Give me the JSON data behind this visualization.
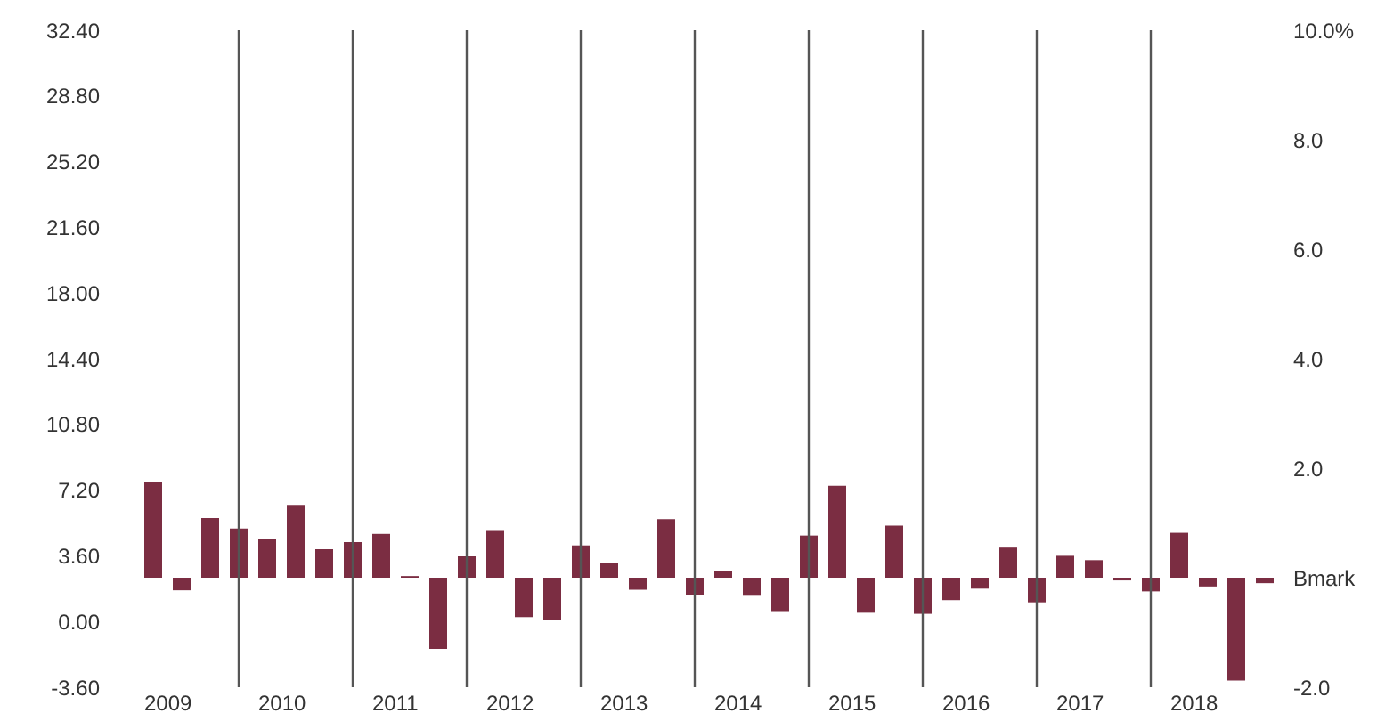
{
  "chart_data": {
    "type": "bar",
    "categories": [
      "2009",
      null,
      null,
      null,
      "2010",
      null,
      null,
      null,
      "2011",
      null,
      null,
      null,
      "2012",
      null,
      null,
      null,
      "2013",
      null,
      null,
      null,
      "2014",
      null,
      null,
      null,
      "2015",
      null,
      null,
      null,
      "2016",
      null,
      null,
      null,
      "2017",
      null,
      null,
      null,
      "2018",
      null,
      null,
      null
    ],
    "series": [
      {
        "color": "#7b2d42",
        "axis": "y2",
        "values": [
          1.74,
          -0.23,
          1.09,
          0.9,
          0.71,
          1.33,
          0.52,
          0.65,
          0.8,
          0.03,
          -1.3,
          0.39,
          0.87,
          -0.72,
          -0.77,
          0.59,
          0.26,
          -0.22,
          1.07,
          -0.31,
          0.12,
          -0.33,
          -0.61,
          0.77,
          1.68,
          -0.64,
          0.95,
          -0.66,
          -0.41,
          -0.2,
          0.55,
          -0.45,
          0.4,
          0.32,
          -0.05,
          -0.25,
          0.82,
          -0.16,
          -1.88,
          -0.1
        ]
      }
    ],
    "ylim": [
      -3.6,
      32.4
    ],
    "yticks": [
      {
        "value": -3.6,
        "label": "-3.60"
      },
      {
        "value": 0,
        "label": "0.00"
      },
      {
        "value": 3.6,
        "label": "3.60"
      },
      {
        "value": 7.2,
        "label": "7.20"
      },
      {
        "value": 10.8,
        "label": "10.80"
      },
      {
        "value": 14.4,
        "label": "14.40"
      },
      {
        "value": 18,
        "label": "18.00"
      },
      {
        "value": 21.6,
        "label": "21.60"
      },
      {
        "value": 25.2,
        "label": "25.20"
      },
      {
        "value": 28.8,
        "label": "28.80"
      },
      {
        "value": 32.4,
        "label": "32.40"
      }
    ],
    "y2lim": [
      -2,
      10
    ],
    "y2ticks": [
      {
        "value": -2,
        "label": "-2.0"
      },
      {
        "value": 0,
        "label": "Bmark"
      },
      {
        "value": 2,
        "label": "2.0"
      },
      {
        "value": 4,
        "label": "4.0"
      },
      {
        "value": 6,
        "label": "6.0"
      },
      {
        "value": 8,
        "label": "8.0"
      },
      {
        "value": 10,
        "label": "10.0%"
      }
    ],
    "grid": "x"
  }
}
